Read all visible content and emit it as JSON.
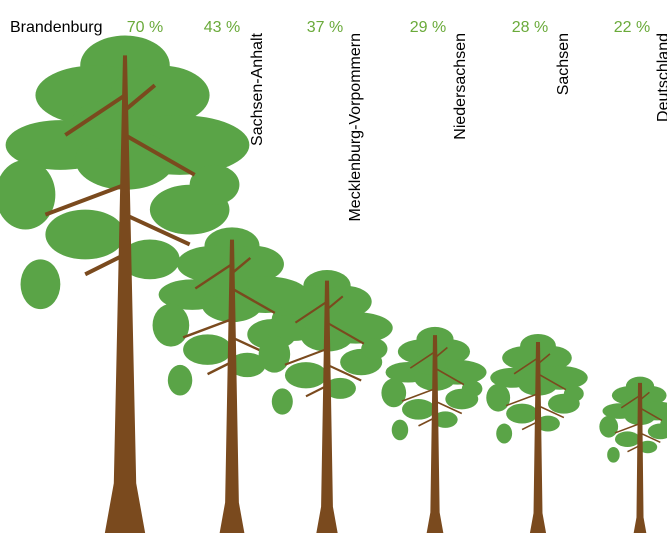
{
  "chart_data": {
    "type": "pictorial",
    "categories": [
      "Brandenburg",
      "Sachsen-Anhalt",
      "Mecklenburg-Vorpommern",
      "Niedersachsen",
      "Sachsen",
      "Deutschland"
    ],
    "values": [
      70,
      43,
      37,
      29,
      28,
      22
    ],
    "value_labels": [
      "70 %",
      "43 %",
      "37 %",
      "29 %",
      "28 %",
      "22 %"
    ],
    "ylim": [
      0,
      75
    ],
    "color": "#5aa447",
    "trunk_color": "#7a4a1e",
    "label_color": "#6aaa3a"
  }
}
